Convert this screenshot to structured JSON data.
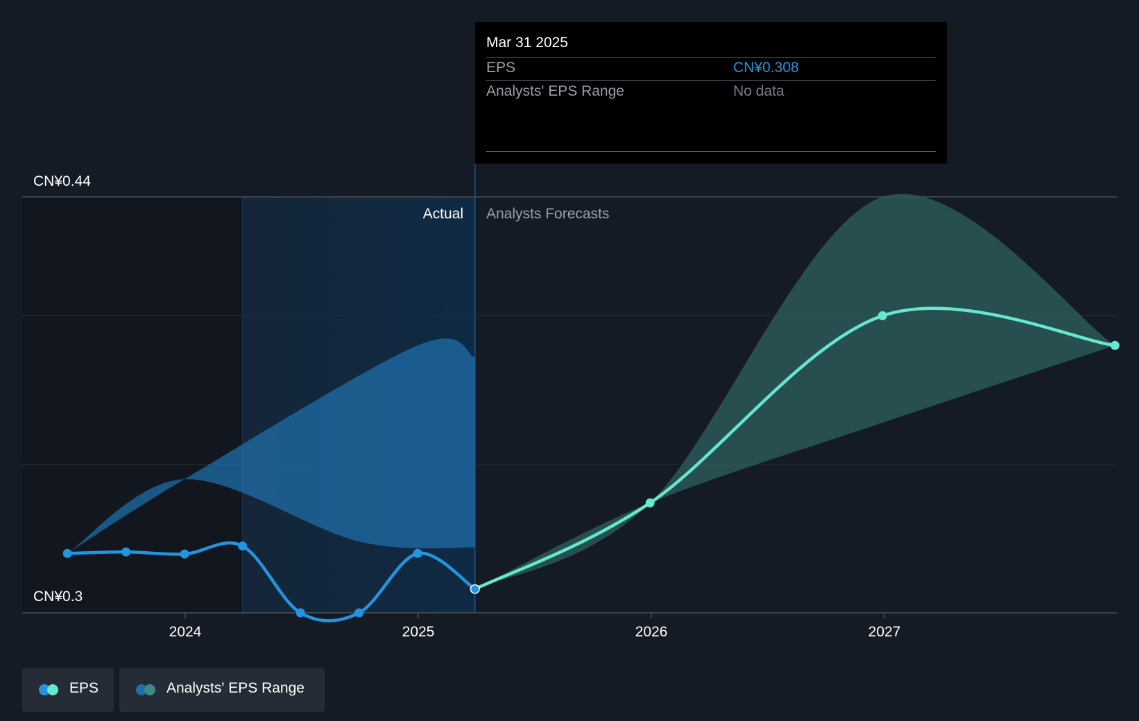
{
  "chart_data": {
    "type": "line",
    "y_axis": {
      "top_label": "CN¥0.44",
      "bottom_label": "CN¥0.3",
      "ylim": [
        0.3,
        0.44
      ]
    },
    "x_axis": {
      "ticks": [
        "2024",
        "2025",
        "2026",
        "2027"
      ]
    },
    "section_labels": {
      "actual": "Actual",
      "forecast": "Analysts Forecasts"
    },
    "series": [
      {
        "name": "EPS",
        "color": "#2394df",
        "points": [
          [
            "2023-06-30",
            0.32
          ],
          [
            "2023-09-30",
            0.3205
          ],
          [
            "2023-12-31",
            0.3198
          ],
          [
            "2024-03-31",
            0.3225
          ],
          [
            "2024-06-30",
            0.3
          ],
          [
            "2024-09-30",
            0.3
          ],
          [
            "2024-12-31",
            0.32
          ],
          [
            "2025-03-31",
            0.308
          ]
        ]
      },
      {
        "name": "EPS",
        "color": "#64e8d0",
        "points": [
          [
            "2025-03-31",
            0.308
          ],
          [
            "2025-12-31",
            0.337
          ],
          [
            "2026-12-31",
            0.4
          ],
          [
            "2027-12-31",
            0.39
          ]
        ]
      }
    ],
    "ranges": [
      {
        "name": "Analysts' EPS Range",
        "color": "#1f6ea8",
        "upper": [
          [
            "2023-06-30",
            0.32
          ],
          [
            "2023-12-31",
            0.345
          ],
          [
            "2024-12-31",
            0.39
          ],
          [
            "2025-03-31",
            0.386
          ]
        ],
        "lower": [
          [
            "2023-06-30",
            0.32
          ],
          [
            "2023-12-31",
            0.345
          ],
          [
            "2024-09-30",
            0.324
          ],
          [
            "2025-03-31",
            0.322
          ]
        ]
      },
      {
        "name": "Analysts' EPS Range",
        "color": "#2d5c5b",
        "upper": [
          [
            "2025-03-31",
            0.308
          ],
          [
            "2025-12-31",
            0.337
          ],
          [
            "2026-12-31",
            0.44
          ],
          [
            "2027-12-31",
            0.39
          ]
        ],
        "lower": [
          [
            "2025-03-31",
            0.308
          ],
          [
            "2025-12-31",
            0.337
          ],
          [
            "2026-12-31",
            0.364
          ],
          [
            "2027-12-31",
            0.39
          ]
        ]
      }
    ],
    "grid": true
  },
  "tooltip": {
    "date": "Mar 31 2025",
    "rows": [
      {
        "label": "EPS",
        "value": "CN¥0.308",
        "value_color": "#2394df"
      },
      {
        "label": "Analysts' EPS Range",
        "value": "No data",
        "value_color": "#7b8088"
      }
    ]
  },
  "legend": {
    "items": [
      {
        "label": "EPS",
        "colors": [
          "#2394df",
          "#64e8d0"
        ]
      },
      {
        "label": "Analysts' EPS Range",
        "colors": [
          "#1f6ea8",
          "#3d8b84"
        ]
      }
    ]
  }
}
